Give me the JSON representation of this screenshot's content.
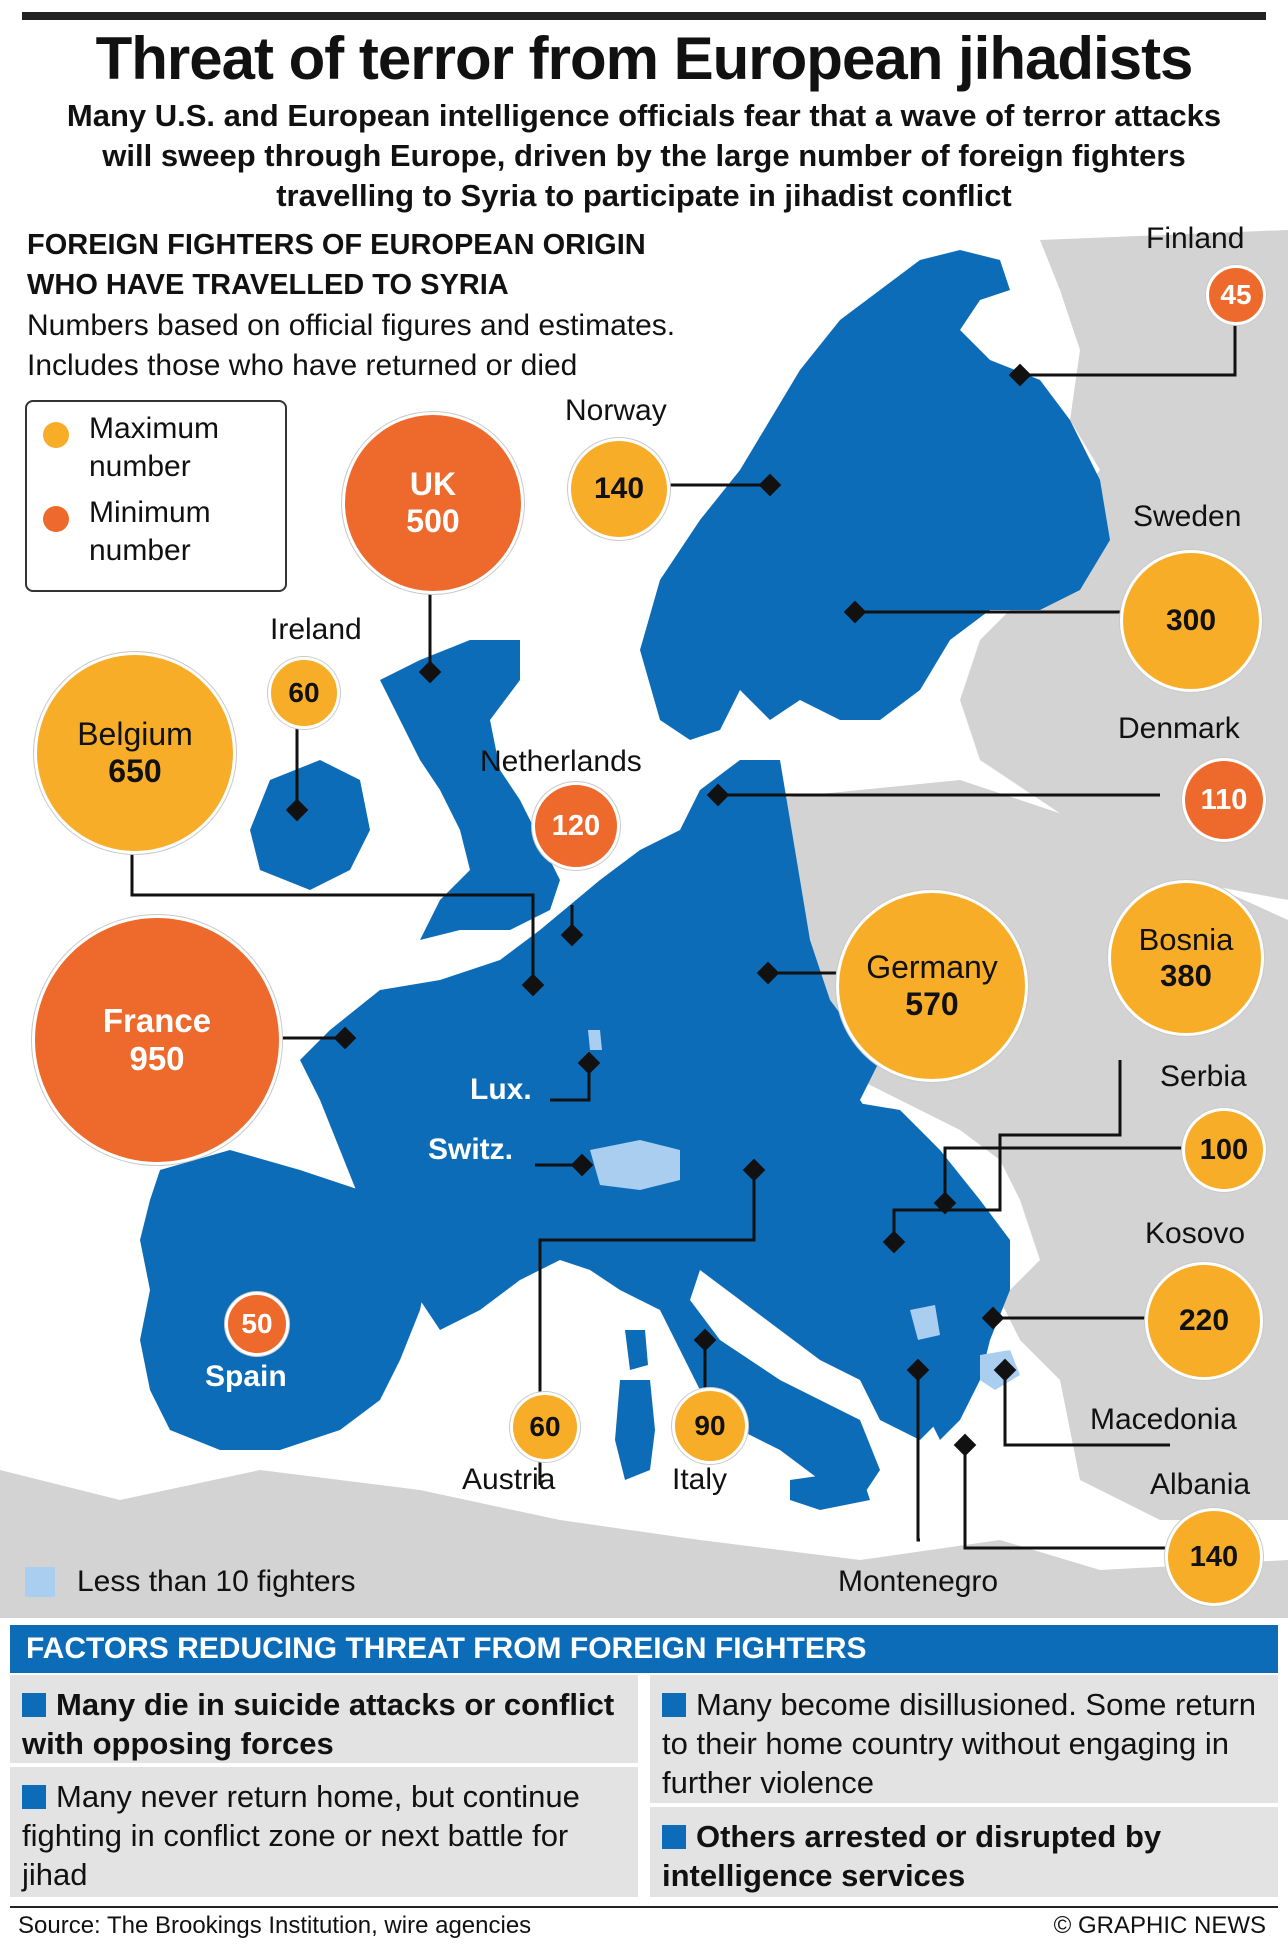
{
  "header": {
    "title": "Threat of terror from European jihadists",
    "subtitle": "Many U.S. and European intelligence officials fear that a wave of terror attacks will sweep through Europe, driven by the large number of foreign fighters travelling to Syria to participate in jihadist conflict"
  },
  "map": {
    "section_title_1": "FOREIGN FIGHTERS OF EUROPEAN ORIGIN",
    "section_title_2": "WHO HAVE TRAVELLED TO SYRIA",
    "note_1": "Numbers based on official figures and estimates.",
    "note_2": "Includes those who have returned or died",
    "legend": {
      "max_label_1": "Maximum",
      "max_label_2": "number",
      "min_label_1": "Minimum",
      "min_label_2": "number",
      "less_than_10": "Less than 10 fighters"
    },
    "colors": {
      "country_blue": "#0d6cb8",
      "low_country": "#a9cef0",
      "other_land": "#d3d3d3",
      "maximum": "#f8ad28",
      "minimum": "#ee6a2c"
    },
    "countries": [
      {
        "name": "Finland",
        "value": "45",
        "type": "minimum"
      },
      {
        "name": "Norway",
        "value": "140",
        "type": "maximum"
      },
      {
        "name": "UK",
        "value": "500",
        "type": "minimum"
      },
      {
        "name": "Sweden",
        "value": "300",
        "type": "maximum"
      },
      {
        "name": "Ireland",
        "value": "60",
        "type": "maximum"
      },
      {
        "name": "Belgium",
        "value": "650",
        "type": "maximum"
      },
      {
        "name": "Netherlands",
        "value": "120",
        "type": "minimum"
      },
      {
        "name": "Denmark",
        "value": "110",
        "type": "minimum"
      },
      {
        "name": "Germany",
        "value": "570",
        "type": "maximum"
      },
      {
        "name": "Bosnia",
        "value": "380",
        "type": "maximum"
      },
      {
        "name": "France",
        "value": "950",
        "type": "minimum"
      },
      {
        "name": "Serbia",
        "value": "100",
        "type": "maximum"
      },
      {
        "name": "Kosovo",
        "value": "220",
        "type": "maximum"
      },
      {
        "name": "Spain",
        "value": "50",
        "type": "minimum"
      },
      {
        "name": "Austria",
        "value": "60",
        "type": "maximum"
      },
      {
        "name": "Italy",
        "value": "90",
        "type": "maximum"
      },
      {
        "name": "Albania",
        "value": "140",
        "type": "maximum"
      }
    ],
    "small_labels": {
      "lux": "Lux.",
      "switz": "Switz.",
      "macedonia": "Macedonia",
      "montenegro": "Montenegro"
    }
  },
  "factors": {
    "heading": "FACTORS REDUCING THREAT FROM FOREIGN FIGHTERS",
    "items": [
      "Many die in suicide attacks or conflict with opposing forces",
      "Many never return home, but continue fighting in conflict zone or next battle for jihad",
      "Many become disillusioned. Some return to their home country without engaging in further violence",
      "Others arrested or disrupted by intelligence services"
    ]
  },
  "footer": {
    "source": "Source: The Brookings Institution, wire agencies",
    "credit": "© GRAPHIC NEWS"
  }
}
